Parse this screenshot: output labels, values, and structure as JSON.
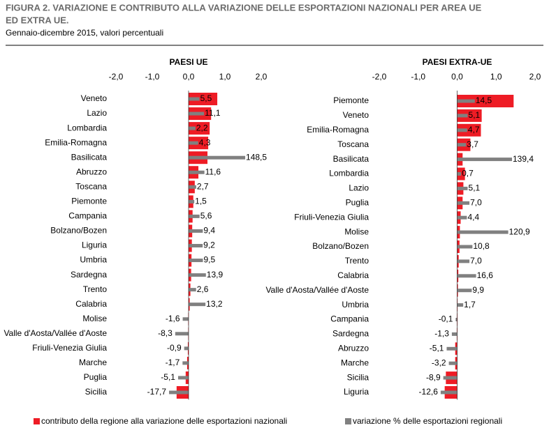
{
  "figure": {
    "title_lines": [
      "FIGURA 2. VARIAZIONE E CONTRIBUTO ALLA VARIAZIONE DELLE ESPORTAZIONI NAZIONALI PER AREA UE",
      "ED EXTRA UE."
    ],
    "subtitle": "Gennaio-dicembre 2015, valori percentuali"
  },
  "chart_data": [
    {
      "type": "bar",
      "orientation": "horizontal",
      "title": "PAESI UE",
      "categories": [
        "Veneto",
        "Lazio",
        "Lombardia",
        "Emilia-Romagna",
        "Basilicata",
        "Abruzzo",
        "Toscana",
        "Piemonte",
        "Campania",
        "Bolzano/Bozen",
        "Liguria",
        "Umbria",
        "Sardegna",
        "Trento",
        "Calabria",
        "Molise",
        "Valle d'Aosta/Vallée d'Aoste",
        "Friuli-Venezia Giulia",
        "Marche",
        "Puglia",
        "Sicilia"
      ],
      "series": [
        {
          "name": "contributo della regione alla variazione delle esportazioni nazionali",
          "color": "#ee1c25",
          "values": [
            0.79,
            0.62,
            0.58,
            0.54,
            0.52,
            0.27,
            0.17,
            0.13,
            0.11,
            0.1,
            0.09,
            0.08,
            0.07,
            0.05,
            0.03,
            -0.01,
            -0.01,
            -0.02,
            -0.04,
            -0.08,
            -0.33
          ]
        },
        {
          "name": "variazione % delle esportazioni regionali",
          "color": "#808080",
          "axis": "hidden",
          "values": [
            5.5,
            11.1,
            2.2,
            4.3,
            148.5,
            11.6,
            2.7,
            1.5,
            5.6,
            9.4,
            9.2,
            9.5,
            13.9,
            2.6,
            13.2,
            -1.6,
            -8.3,
            -0.9,
            -1.7,
            -5.1,
            -17.7
          ],
          "value_labels": [
            "5,5",
            "11,1",
            "2,2",
            "4,3",
            "148,5",
            "11,6",
            "2,7",
            "1,5",
            "5,6",
            "9,4",
            "9,2",
            "9,5",
            "13,9",
            "2,6",
            "13,2",
            "-1,6",
            "-8,3",
            "-0,9",
            "-1,7",
            "-5,1",
            "-17,7"
          ]
        }
      ],
      "xlim": [
        -2,
        2
      ],
      "xticks": [
        {
          "value": -2,
          "label": "-2,0"
        },
        {
          "value": -1,
          "label": "-1,0"
        },
        {
          "value": 0,
          "label": "0,0"
        },
        {
          "value": 1,
          "label": "1,0"
        },
        {
          "value": 2,
          "label": "2,0"
        }
      ]
    },
    {
      "type": "bar",
      "orientation": "horizontal",
      "title": "PAESI EXTRA-UE",
      "categories": [
        "Piemonte",
        "Veneto",
        "Emilia-Romagna",
        "Toscana",
        "Basilicata",
        "Lombardia",
        "Lazio",
        "Puglia",
        "Friuli-Venezia Giulia",
        "Molise",
        "Bolzano/Bozen",
        "Trento",
        "Calabria",
        "Valle d'Aosta/Vallée d'Aoste",
        "Umbria",
        "Campania",
        "Sardegna",
        "Abruzzo",
        "Marche",
        "Sicilia",
        "Liguria"
      ],
      "series": [
        {
          "name": "contributo della regione alla variazione delle esportazioni nazionali",
          "color": "#ee1c25",
          "values": [
            1.45,
            0.63,
            0.61,
            0.34,
            0.14,
            0.2,
            0.16,
            0.14,
            0.09,
            0.07,
            0.06,
            0.04,
            0.03,
            0.02,
            0.01,
            0,
            -0.01,
            -0.05,
            -0.05,
            -0.29,
            -0.32
          ]
        },
        {
          "name": "variazione % delle esportazioni regionali",
          "color": "#808080",
          "axis": "hidden",
          "values": [
            14.5,
            5.1,
            4.7,
            3.7,
            139.4,
            0.7,
            5.1,
            7.0,
            4.4,
            120.9,
            10.8,
            7.0,
            16.6,
            9.9,
            1.7,
            -0.1,
            -1.3,
            -5.1,
            -3.2,
            -8.9,
            -12.6
          ],
          "value_labels": [
            "14,5",
            "5,1",
            "4,7",
            "3,7",
            "139,4",
            "0,7",
            "5,1",
            "7,0",
            "4,4",
            "120,9",
            "10,8",
            "7,0",
            "16,6",
            "9,9",
            "1,7",
            "-0,1",
            "-1,3",
            "-5,1",
            "-3,2",
            "-8,9",
            "-12,6"
          ]
        }
      ],
      "xlim": [
        -2,
        2
      ],
      "xticks": [
        {
          "value": -2,
          "label": "-2,0"
        },
        {
          "value": -1,
          "label": "-1,0"
        },
        {
          "value": 0,
          "label": "0,0"
        },
        {
          "value": 1,
          "label": "1,0"
        },
        {
          "value": 2,
          "label": "2,0"
        }
      ]
    }
  ]
}
